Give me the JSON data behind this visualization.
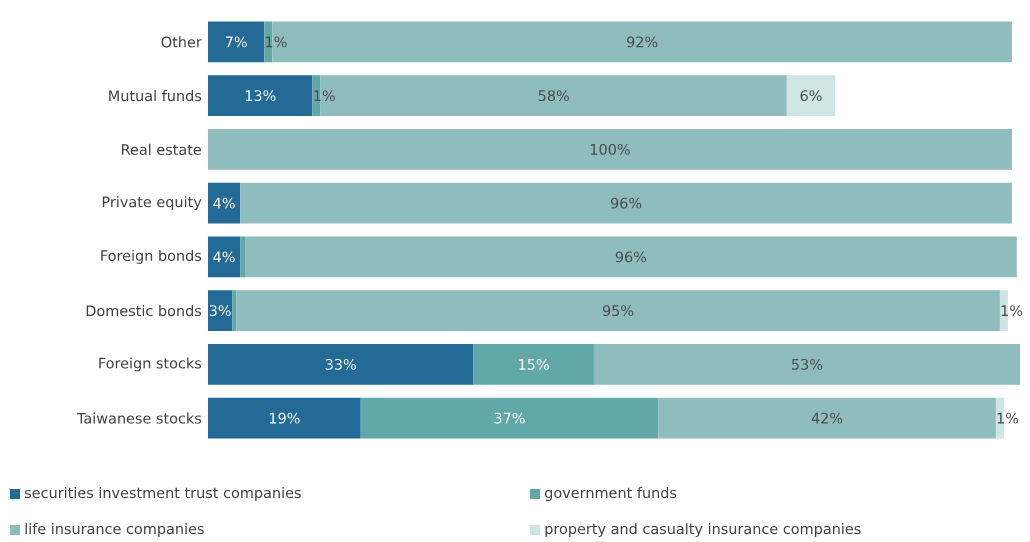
{
  "chart_data": {
    "type": "bar",
    "orientation": "horizontal",
    "stacked": true,
    "xlim": [
      0,
      101
    ],
    "tick_labels": "y",
    "legend": "bottom",
    "categories": [
      "Other",
      "Mutual funds",
      "Real estate",
      "Private equity",
      "Foreign bonds",
      "Domestic bonds",
      "Foreign stocks",
      "Taiwanese stocks"
    ],
    "series": [
      {
        "name": "securities investment trust companies",
        "color": "#246a96",
        "values": [
          7,
          13,
          null,
          4,
          4,
          3,
          33,
          19
        ],
        "value_labels": [
          "7%",
          "13%",
          null,
          "4%",
          "4%",
          "3%",
          "33%",
          "19%"
        ]
      },
      {
        "name": "government funds",
        "color": "#62a8a8",
        "values": [
          1,
          1,
          null,
          null,
          0.6,
          0.5,
          15,
          37
        ],
        "value_labels": [
          "1%",
          "1%",
          null,
          null,
          null,
          null,
          "15%",
          "37%"
        ]
      },
      {
        "name": "life insurance companies",
        "color": "#8fbcbd",
        "values": [
          92,
          58,
          100,
          96,
          96,
          95,
          53,
          42
        ],
        "value_labels": [
          "92%",
          "58%",
          "100%",
          "96%",
          "96%",
          "95%",
          "53%",
          "42%"
        ]
      },
      {
        "name": "property and casualty insurance companies",
        "color": "#cfe5e5",
        "values": [
          null,
          6,
          null,
          null,
          null,
          1,
          null,
          1
        ],
        "value_labels": [
          null,
          "6%",
          null,
          null,
          null,
          "1%",
          null,
          "1%"
        ]
      }
    ]
  }
}
